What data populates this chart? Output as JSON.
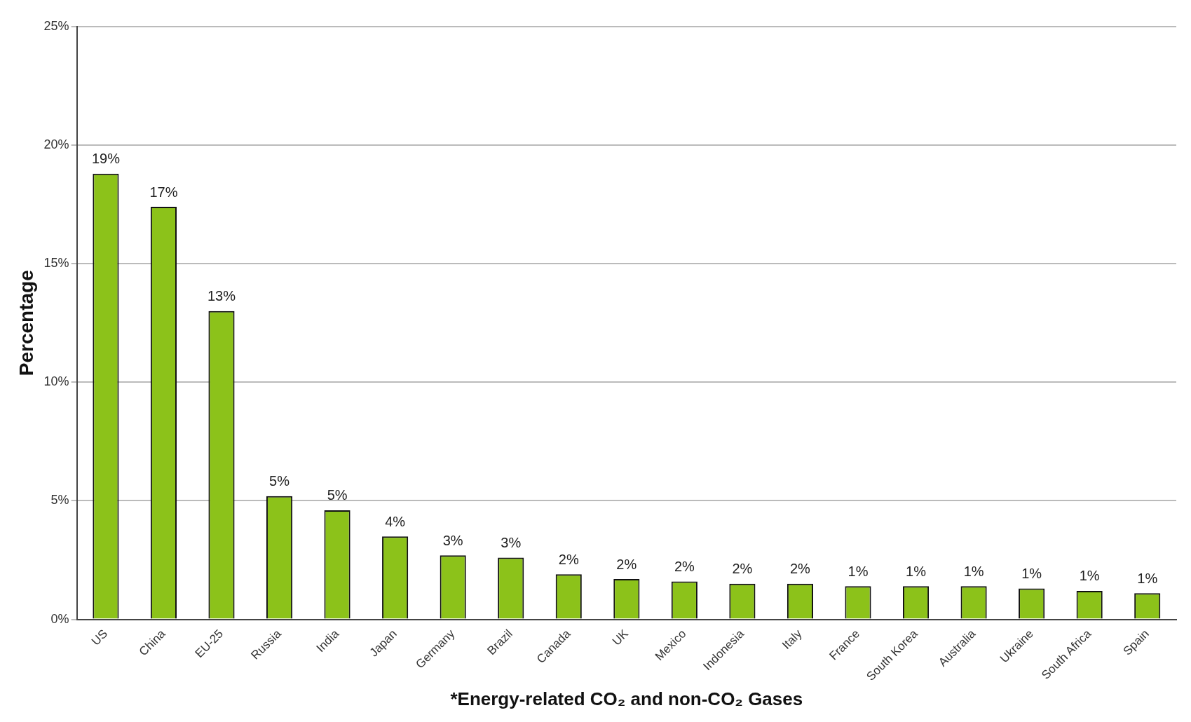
{
  "chart_data": {
    "type": "bar",
    "xlabel": "*Energy-related CO₂ and non-CO₂ Gases",
    "ylabel": "Percentage",
    "categories": [
      "US",
      "China",
      "EU-25",
      "Russia",
      "India",
      "Japan",
      "Germany",
      "Brazil",
      "Canada",
      "UK",
      "Mexico",
      "Indonesia",
      "Italy",
      "France",
      "South Korea",
      "Australia",
      "Ukraine",
      "South Africa",
      "Spain"
    ],
    "values": [
      18.8,
      17.4,
      13.0,
      5.2,
      4.6,
      3.5,
      2.7,
      2.6,
      1.9,
      1.7,
      1.6,
      1.5,
      1.5,
      1.4,
      1.4,
      1.4,
      1.3,
      1.2,
      1.1
    ],
    "value_labels": [
      "19%",
      "17%",
      "13%",
      "5%",
      "5%",
      "4%",
      "3%",
      "3%",
      "2%",
      "2%",
      "2%",
      "2%",
      "2%",
      "1%",
      "1%",
      "1%",
      "1%",
      "1%",
      "1%"
    ],
    "color": "#8cc21a",
    "ylim": [
      0,
      25
    ],
    "yticks": [
      {
        "value": 0,
        "label": "0%"
      },
      {
        "value": 5,
        "label": "5%"
      },
      {
        "value": 10,
        "label": "10%"
      },
      {
        "value": 15,
        "label": "15%"
      },
      {
        "value": 20,
        "label": "20%"
      },
      {
        "value": 25,
        "label": "25%"
      }
    ],
    "grid": "y",
    "legend": false
  }
}
